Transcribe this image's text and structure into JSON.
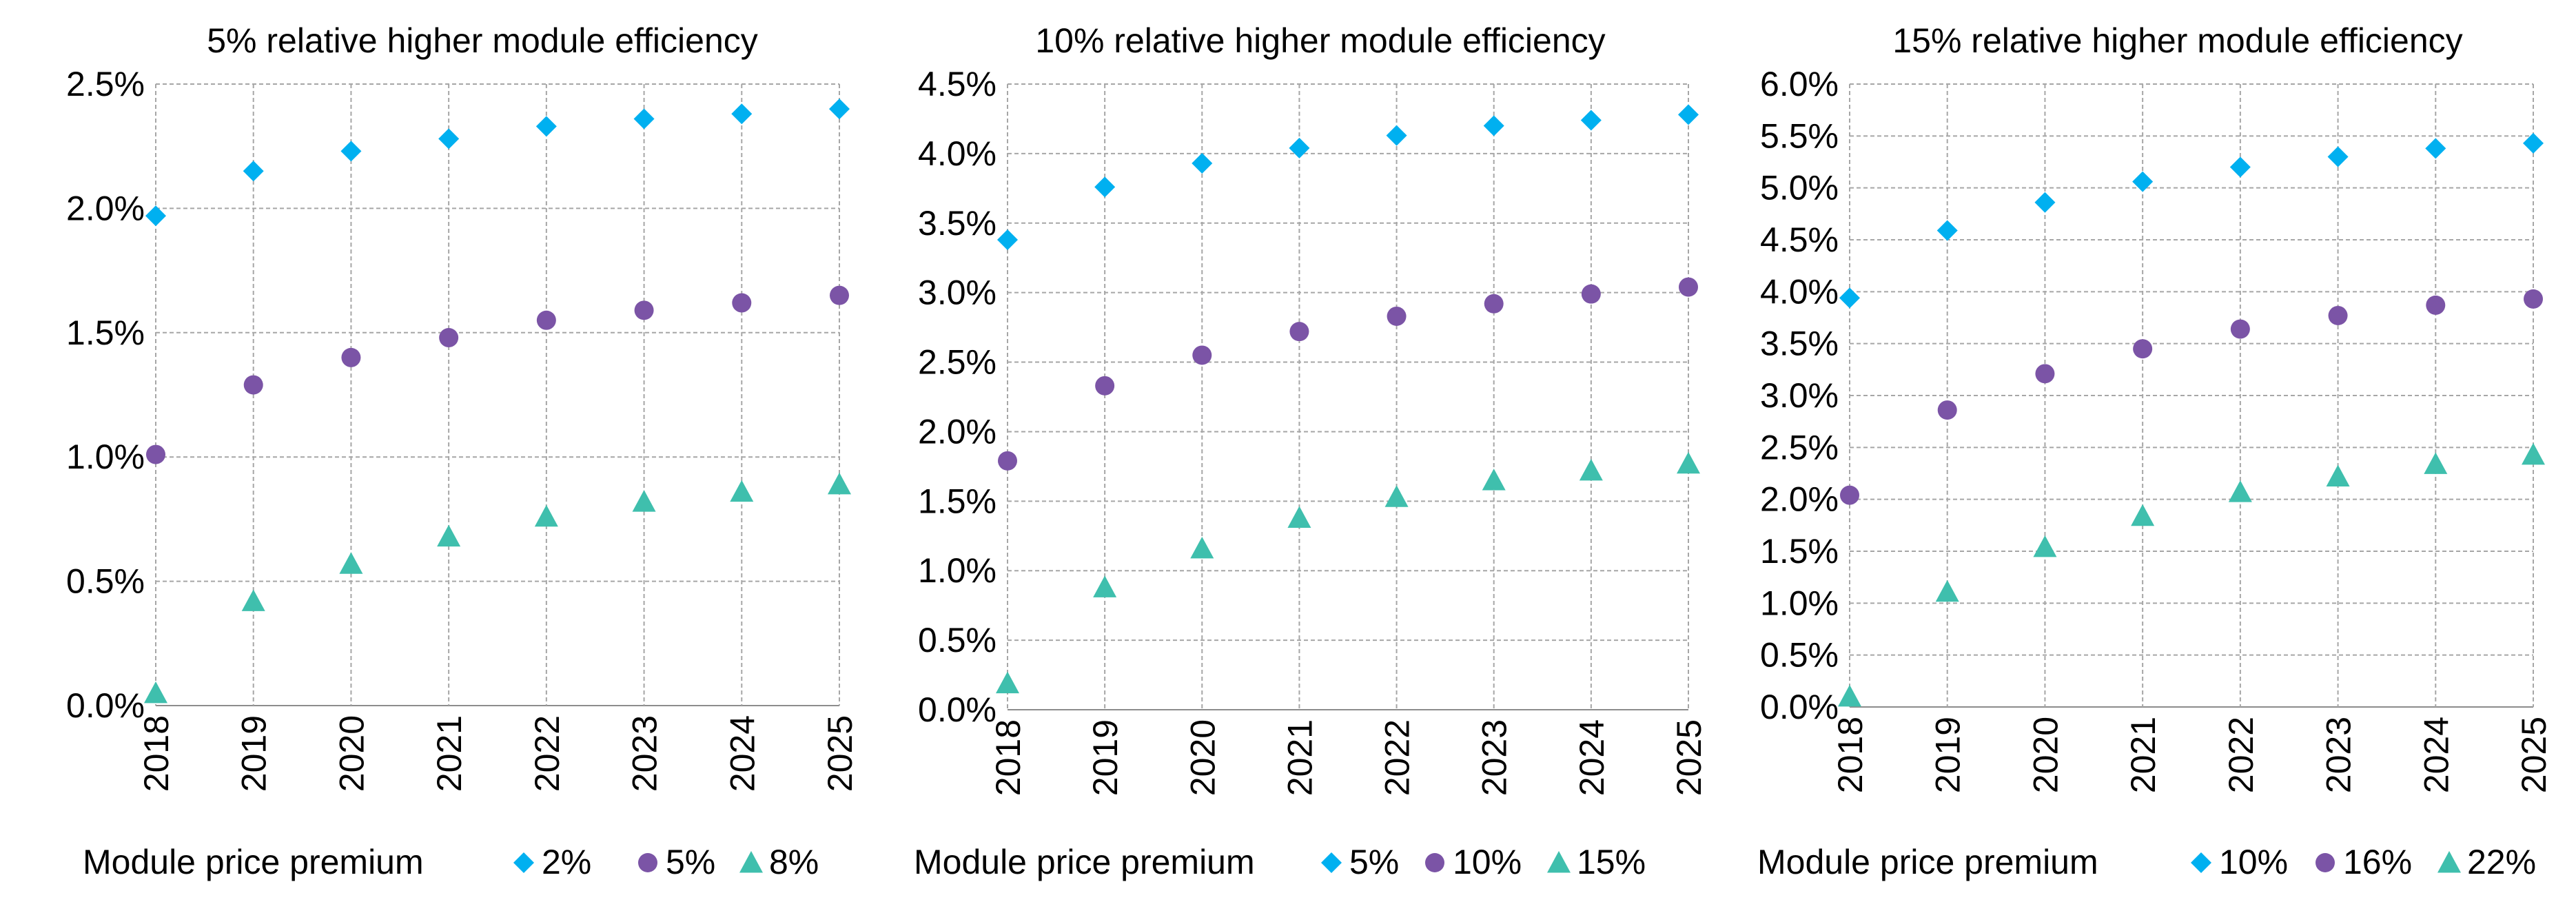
{
  "chart_data": [
    {
      "type": "scatter",
      "title": "5% relative higher module efficiency",
      "xlabel": "",
      "ylabel": "",
      "categories": [
        "2018",
        "2019",
        "2020",
        "2021",
        "2022",
        "2023",
        "2024",
        "2025"
      ],
      "ylim": [
        0,
        2.5
      ],
      "ytick_values": [
        0,
        0.5,
        1.0,
        1.5,
        2.0,
        2.5
      ],
      "yticks": [
        "0.0%",
        "0.5%",
        "1.0%",
        "1.5%",
        "2.0%",
        "2.5%"
      ],
      "grid": true,
      "legend_title": "Module price premium",
      "legend_position": "bottom",
      "series": [
        {
          "name": "2%",
          "marker": "diamond",
          "color": "#00b0f0",
          "values": [
            1.97,
            2.15,
            2.23,
            2.28,
            2.33,
            2.36,
            2.38,
            2.4
          ]
        },
        {
          "name": "5%",
          "marker": "circle",
          "color": "#7b54a6",
          "values": [
            1.01,
            1.29,
            1.4,
            1.48,
            1.55,
            1.59,
            1.62,
            1.65
          ]
        },
        {
          "name": "8%",
          "marker": "triangle",
          "color": "#3fbfad",
          "values": [
            0.05,
            0.42,
            0.57,
            0.68,
            0.76,
            0.82,
            0.86,
            0.89
          ]
        }
      ]
    },
    {
      "type": "scatter",
      "title": "10% relative higher module efficiency",
      "xlabel": "",
      "ylabel": "",
      "categories": [
        "2018",
        "2019",
        "2020",
        "2021",
        "2022",
        "2023",
        "2024",
        "2025"
      ],
      "ylim": [
        0,
        4.5
      ],
      "ytick_values": [
        0,
        0.5,
        1.0,
        1.5,
        2.0,
        2.5,
        3.0,
        3.5,
        4.0,
        4.5
      ],
      "yticks": [
        "0.0%",
        "0.5%",
        "1.0%",
        "1.5%",
        "2.0%",
        "2.5%",
        "3.0%",
        "3.5%",
        "4.0%",
        "4.5%"
      ],
      "grid": true,
      "legend_title": "Module price premium",
      "legend_position": "bottom",
      "series": [
        {
          "name": "5%",
          "marker": "diamond",
          "color": "#00b0f0",
          "values": [
            3.38,
            3.76,
            3.93,
            4.04,
            4.13,
            4.2,
            4.24,
            4.28
          ]
        },
        {
          "name": "10%",
          "marker": "circle",
          "color": "#7b54a6",
          "values": [
            1.79,
            2.33,
            2.55,
            2.72,
            2.83,
            2.92,
            2.99,
            3.04
          ]
        },
        {
          "name": "15%",
          "marker": "triangle",
          "color": "#3fbfad",
          "values": [
            0.19,
            0.88,
            1.16,
            1.38,
            1.53,
            1.65,
            1.72,
            1.77
          ]
        }
      ]
    },
    {
      "type": "scatter",
      "title": "15% relative higher module efficiency",
      "xlabel": "",
      "ylabel": "",
      "categories": [
        "2018",
        "2019",
        "2020",
        "2021",
        "2022",
        "2023",
        "2024",
        "2025"
      ],
      "ylim": [
        0,
        6.0
      ],
      "ytick_values": [
        0,
        0.5,
        1.0,
        1.5,
        2.0,
        2.5,
        3.0,
        3.5,
        4.0,
        4.5,
        5.0,
        5.5,
        6.0
      ],
      "yticks": [
        "0.0%",
        "0.5%",
        "1.0%",
        "1.5%",
        "2.0%",
        "2.5%",
        "3.0%",
        "3.5%",
        "4.0%",
        "4.5%",
        "5.0%",
        "5.5%",
        "6.0%"
      ],
      "grid": true,
      "legend_title": "Module price premium",
      "legend_position": "bottom",
      "series": [
        {
          "name": "10%",
          "marker": "diamond",
          "color": "#00b0f0",
          "values": [
            3.94,
            4.59,
            4.86,
            5.06,
            5.2,
            5.3,
            5.38,
            5.43
          ]
        },
        {
          "name": "16%",
          "marker": "circle",
          "color": "#7b54a6",
          "values": [
            2.04,
            2.86,
            3.21,
            3.45,
            3.64,
            3.77,
            3.87,
            3.93
          ]
        },
        {
          "name": "22%",
          "marker": "triangle",
          "color": "#3fbfad",
          "values": [
            0.1,
            1.11,
            1.54,
            1.84,
            2.07,
            2.22,
            2.34,
            2.43
          ]
        }
      ]
    }
  ]
}
